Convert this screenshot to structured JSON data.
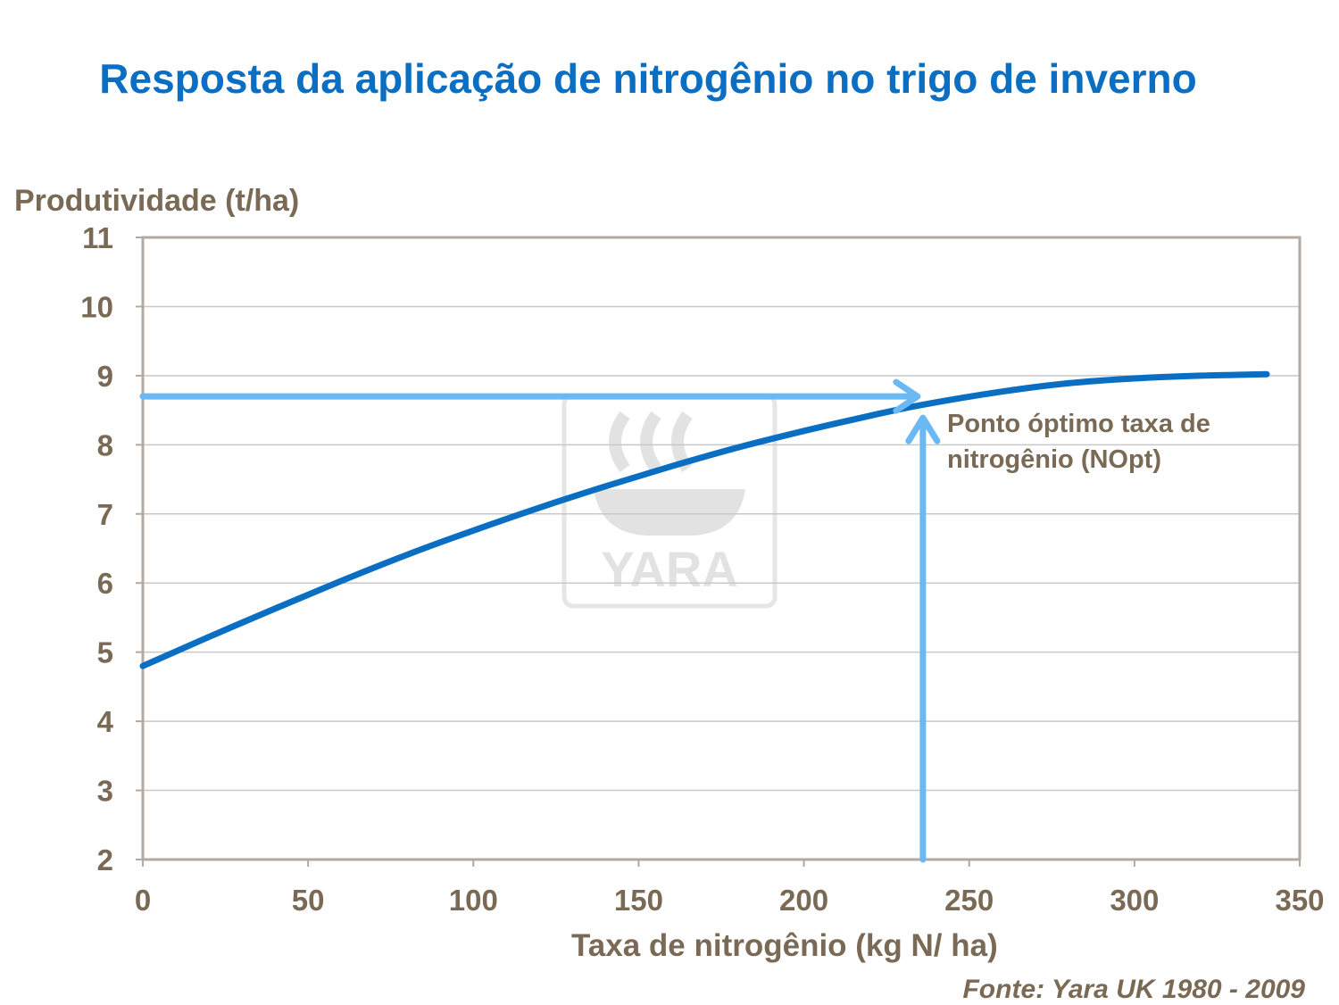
{
  "chart_data": {
    "type": "line",
    "title": "Resposta da aplicação de nitrogênio no trigo de inverno",
    "xlabel": "Taxa de nitrogênio (kg N/ ha)",
    "ylabel": "Produtividade (t/ha)",
    "xlim": [
      0,
      350
    ],
    "ylim": [
      2,
      11
    ],
    "x_ticks": [
      0,
      50,
      100,
      150,
      200,
      250,
      300,
      350
    ],
    "y_ticks": [
      2,
      3,
      4,
      5,
      6,
      7,
      8,
      9,
      10,
      11
    ],
    "grid": true,
    "series": [
      {
        "x": [
          0,
          20,
          40,
          60,
          80,
          100,
          120,
          140,
          160,
          180,
          200,
          220,
          236,
          260,
          280,
          300,
          320,
          340
        ],
        "values": [
          4.8,
          5.22,
          5.63,
          6.03,
          6.41,
          6.76,
          7.09,
          7.4,
          7.69,
          7.96,
          8.2,
          8.42,
          8.58,
          8.77,
          8.89,
          8.96,
          9.0,
          9.02
        ],
        "color": "#0a6fc2"
      }
    ],
    "annotation": {
      "text": "Ponto óptimo  taxa de\nnitrogênio  (NOpt)",
      "x": 236,
      "y": 8.7,
      "arrow_color": "#6ab8f4"
    },
    "source": "Fonte: Yara UK 1980 - 2009"
  },
  "watermark": {
    "text": "YARA"
  }
}
